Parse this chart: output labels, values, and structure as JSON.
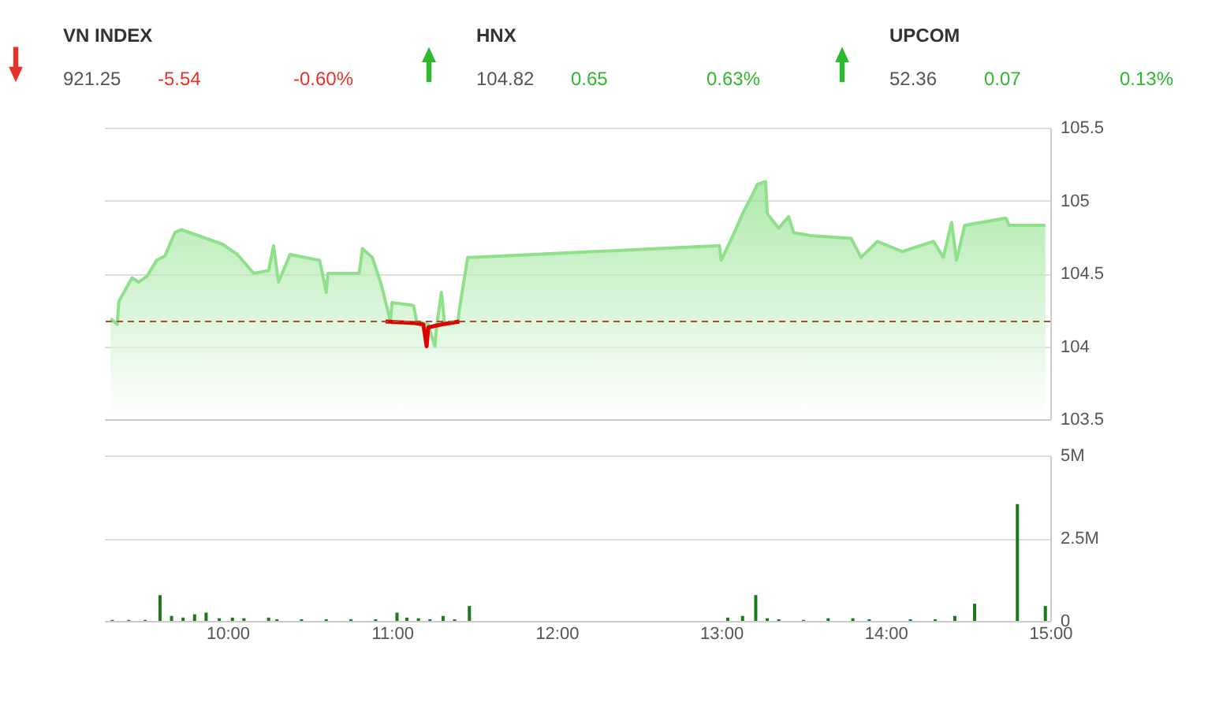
{
  "chart_data": [
    {
      "type": "other",
      "categories": [
        "VN INDEX",
        "HNX",
        "UPCOM"
      ],
      "values": [
        -5.54,
        0.65,
        0.07
      ],
      "colors": [
        "#e8332a",
        "#2eb82e",
        "#2eb82e"
      ],
      "data_labels": true,
      "annotations": [
        "921.25",
        "-0.60%",
        "104.82",
        "0.63%",
        "52.36",
        "0.13%"
      ]
    },
    {
      "type": "area",
      "xlim": [
        9.25,
        15.0
      ],
      "xticks": [
        {
          "value": 10,
          "label": null
        },
        {
          "value": 11,
          "label": null
        },
        {
          "value": 12,
          "label": null
        },
        {
          "value": 13,
          "label": null
        },
        {
          "value": 14,
          "label": null
        },
        {
          "value": 15,
          "label": null
        }
      ],
      "ylim": [
        103.5,
        105.5
      ],
      "yticks": [
        103.5,
        104,
        104.5,
        105,
        105.5
      ],
      "grid": "y",
      "tick_labels": "y",
      "ref_lines": [
        {
          "axis": "y",
          "value": 104.17,
          "color": "#a0522d",
          "line_style": "dashed"
        }
      ],
      "series": [
        {
          "type": "area",
          "color": "#8ee08a",
          "x": [
            9.29,
            9.33,
            9.34,
            9.42,
            9.46,
            9.51,
            9.57,
            9.62,
            9.68,
            9.72,
            9.97,
            10.06,
            10.16,
            10.25,
            10.28,
            10.31,
            10.38,
            10.56,
            10.6,
            10.61,
            10.8,
            10.82,
            10.88,
            10.93,
            10.96,
            10.99,
            11.0,
            11.13,
            11.15,
            11.22,
            11.26,
            11.27,
            11.3,
            11.32,
            11.4,
            11.41,
            11.46,
            11.48,
            12.99,
            13.0,
            13.08,
            13.13,
            13.19,
            13.22,
            13.27,
            13.28,
            13.35,
            13.41,
            13.44,
            13.54,
            13.79,
            13.85,
            13.95,
            14.1,
            14.29,
            14.35,
            14.4,
            14.43,
            14.48,
            14.73,
            14.75,
            14.97
          ],
          "values": [
            104.19,
            104.15,
            104.31,
            104.47,
            104.44,
            104.48,
            104.59,
            104.62,
            104.78,
            104.8,
            104.7,
            104.63,
            104.5,
            104.52,
            104.69,
            104.44,
            104.63,
            104.59,
            104.37,
            104.5,
            104.5,
            104.67,
            104.61,
            104.44,
            104.31,
            104.17,
            104.3,
            104.28,
            104.17,
            104.15,
            104.0,
            104.13,
            104.37,
            104.15,
            104.17,
            104.26,
            104.61,
            104.61,
            104.69,
            104.59,
            104.78,
            104.91,
            105.04,
            105.11,
            105.13,
            104.91,
            104.81,
            104.89,
            104.78,
            104.76,
            104.74,
            104.61,
            104.72,
            104.65,
            104.72,
            104.61,
            104.85,
            104.59,
            104.83,
            104.88,
            104.83,
            104.83
          ]
        },
        {
          "type": "line",
          "color": "#e00000",
          "x": [
            10.96,
            11.13,
            11.19,
            11.21,
            11.22,
            11.3,
            11.41
          ],
          "values": [
            104.17,
            104.16,
            104.15,
            104.0,
            104.13,
            104.15,
            104.17
          ]
        }
      ]
    },
    {
      "type": "bar",
      "xlim": [
        9.25,
        15.0
      ],
      "xticks": [
        {
          "value": 10,
          "label": "10:00"
        },
        {
          "value": 11,
          "label": "11:00"
        },
        {
          "value": 12,
          "label": "12:00"
        },
        {
          "value": 13,
          "label": "13:00"
        },
        {
          "value": 14,
          "label": "14:00"
        },
        {
          "value": 15,
          "label": "15:00"
        }
      ],
      "ylim": [
        0,
        5
      ],
      "yticks": [
        0,
        {
          "value": 2.5,
          "label": "2.5M"
        },
        {
          "value": 5,
          "label": "5M"
        }
      ],
      "grid": "y",
      "x": [
        9.3,
        9.4,
        9.5,
        9.59,
        9.66,
        9.73,
        9.8,
        9.87,
        9.95,
        10.03,
        10.1,
        10.25,
        10.3,
        10.45,
        10.6,
        10.75,
        10.9,
        11.03,
        11.09,
        11.16,
        11.23,
        11.31,
        11.38,
        11.47,
        13.04,
        13.13,
        13.21,
        13.28,
        13.35,
        13.5,
        13.65,
        13.8,
        13.9,
        14.15,
        14.3,
        14.42,
        14.54,
        14.8,
        14.97
      ],
      "series": [
        {
          "color": "#1a7a1a",
          "values": [
            0.03,
            0.03,
            0.03,
            0.78,
            0.15,
            0.1,
            0.2,
            0.25,
            0.08,
            0.1,
            0.08,
            0.1,
            0.05,
            0.05,
            0.05,
            0.05,
            0.05,
            0.25,
            0.1,
            0.08,
            0.05,
            0.15,
            0.05,
            0.45,
            0.1,
            0.15,
            0.78,
            0.08,
            0.05,
            0.03,
            0.08,
            0.08,
            0.05,
            0.05,
            0.05,
            0.15,
            0.52,
            3.53,
            0.45
          ]
        }
      ]
    }
  ]
}
